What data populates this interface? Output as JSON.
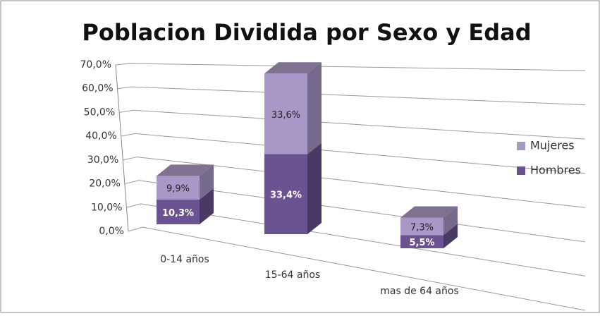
{
  "chart_data": {
    "type": "bar3d_stacked",
    "title": "Poblacion Dividida por Sexo y Edad",
    "categories": [
      "0-14 años",
      "15-64 años",
      "mas de 64 años"
    ],
    "series": [
      {
        "name": "Hombres",
        "color": "#6b5290",
        "values": [
          10.3,
          33.4,
          5.5
        ],
        "value_labels": [
          "10,3%",
          "33,4%",
          "5,5%"
        ]
      },
      {
        "name": "Mujeres",
        "color": "#a898c8",
        "values": [
          9.9,
          33.6,
          7.3
        ],
        "value_labels": [
          "9,9%",
          "33,6%",
          "7,3%"
        ]
      }
    ],
    "ylim": [
      0,
      70
    ],
    "yticks": [
      {
        "value": 0,
        "label": "0,0%"
      },
      {
        "value": 10,
        "label": "10,0%"
      },
      {
        "value": 20,
        "label": "20,0%"
      },
      {
        "value": 30,
        "label": "30,0%"
      },
      {
        "value": 40,
        "label": "40,0%"
      },
      {
        "value": 50,
        "label": "50,0%"
      },
      {
        "value": 60,
        "label": "60,0%"
      },
      {
        "value": 70,
        "label": "70,0%"
      }
    ],
    "grid": true,
    "legend": "right"
  }
}
